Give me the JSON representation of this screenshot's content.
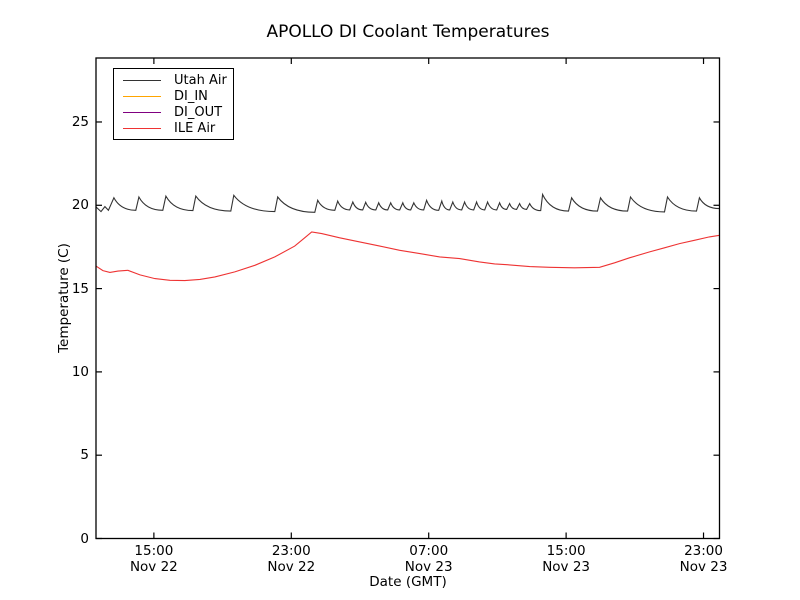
{
  "figure": {
    "background": "#ffffff",
    "axis_color": "#000000"
  },
  "chart_data": {
    "type": "line",
    "title": "APOLLO DI Coolant Temperatures",
    "xlabel": "Date (GMT)",
    "ylabel": "Temperature (C)",
    "x_unit": "hours since Nov 22 00:00 GMT",
    "xlim": [
      11.63,
      47.93
    ],
    "ylim": [
      0,
      28.84
    ],
    "grid": false,
    "legend_position": "upper left",
    "yticks": [
      0,
      5,
      10,
      15,
      20,
      25
    ],
    "xticks": [
      {
        "value": 15,
        "time": "15:00",
        "date": "Nov 22"
      },
      {
        "value": 23,
        "time": "23:00",
        "date": "Nov 22"
      },
      {
        "value": 31,
        "time": "07:00",
        "date": "Nov 23"
      },
      {
        "value": 39,
        "time": "15:00",
        "date": "Nov 23"
      },
      {
        "value": 47,
        "time": "23:00",
        "date": "Nov 23"
      }
    ],
    "series": [
      {
        "name": "Utah Air",
        "color": "#333333",
        "sawtooth": true,
        "points": [
          [
            11.63,
            19.9
          ],
          [
            11.92,
            19.62
          ],
          [
            12.15,
            19.92
          ],
          [
            12.35,
            19.7
          ],
          [
            12.67,
            20.45
          ],
          [
            13.95,
            19.7
          ],
          [
            14.13,
            20.5
          ],
          [
            15.52,
            19.7
          ],
          [
            15.7,
            20.55
          ],
          [
            17.27,
            19.68
          ],
          [
            17.44,
            20.55
          ],
          [
            19.48,
            19.65
          ],
          [
            19.65,
            20.6
          ],
          [
            22.04,
            19.62
          ],
          [
            22.21,
            20.5
          ],
          [
            24.37,
            19.58
          ],
          [
            24.54,
            20.3
          ],
          [
            25.53,
            19.7
          ],
          [
            25.7,
            20.25
          ],
          [
            26.4,
            19.72
          ],
          [
            26.58,
            20.2
          ],
          [
            27.16,
            19.72
          ],
          [
            27.33,
            20.18
          ],
          [
            27.92,
            19.72
          ],
          [
            28.09,
            20.15
          ],
          [
            28.61,
            19.72
          ],
          [
            28.79,
            20.15
          ],
          [
            29.31,
            19.72
          ],
          [
            29.49,
            20.15
          ],
          [
            29.95,
            19.72
          ],
          [
            30.13,
            20.15
          ],
          [
            30.71,
            19.72
          ],
          [
            30.88,
            20.3
          ],
          [
            31.58,
            19.7
          ],
          [
            31.76,
            20.25
          ],
          [
            32.22,
            19.72
          ],
          [
            32.4,
            20.2
          ],
          [
            32.92,
            19.72
          ],
          [
            33.09,
            20.2
          ],
          [
            33.62,
            19.72
          ],
          [
            33.79,
            20.2
          ],
          [
            34.26,
            19.72
          ],
          [
            34.43,
            20.2
          ],
          [
            34.96,
            19.72
          ],
          [
            35.13,
            20.15
          ],
          [
            35.54,
            19.75
          ],
          [
            35.71,
            20.1
          ],
          [
            36.12,
            19.75
          ],
          [
            36.29,
            20.1
          ],
          [
            36.7,
            19.75
          ],
          [
            36.88,
            20.1
          ],
          [
            37.52,
            19.68
          ],
          [
            37.63,
            20.65
          ],
          [
            39.14,
            19.65
          ],
          [
            39.32,
            20.45
          ],
          [
            40.83,
            19.65
          ],
          [
            41.0,
            20.45
          ],
          [
            42.58,
            19.65
          ],
          [
            42.75,
            20.5
          ],
          [
            44.73,
            19.6
          ],
          [
            44.9,
            20.5
          ],
          [
            46.59,
            19.65
          ],
          [
            46.76,
            20.45
          ],
          [
            47.93,
            19.8
          ]
        ]
      },
      {
        "name": "DI_IN",
        "color": "#ffa500",
        "sawtooth": false,
        "points": [
          [
            11.63,
            0
          ],
          [
            47.93,
            0
          ]
        ]
      },
      {
        "name": "DI_OUT",
        "color": "#800080",
        "opacity": 0.7,
        "sawtooth": false,
        "points": [
          [
            11.63,
            0
          ],
          [
            47.93,
            0
          ]
        ]
      },
      {
        "name": "ILE Air",
        "color": "#ee3333",
        "sawtooth": false,
        "points": [
          [
            11.63,
            16.35
          ],
          [
            12.03,
            16.08
          ],
          [
            12.44,
            15.97
          ],
          [
            12.91,
            16.05
          ],
          [
            13.49,
            16.1
          ],
          [
            14.19,
            15.82
          ],
          [
            15.06,
            15.6
          ],
          [
            15.93,
            15.5
          ],
          [
            16.8,
            15.48
          ],
          [
            17.68,
            15.55
          ],
          [
            18.55,
            15.7
          ],
          [
            19.71,
            16.0
          ],
          [
            20.88,
            16.4
          ],
          [
            22.04,
            16.9
          ],
          [
            23.2,
            17.55
          ],
          [
            23.78,
            18.05
          ],
          [
            24.19,
            18.4
          ],
          [
            24.77,
            18.3
          ],
          [
            25.82,
            18.05
          ],
          [
            26.98,
            17.8
          ],
          [
            28.15,
            17.55
          ],
          [
            29.31,
            17.3
          ],
          [
            30.48,
            17.1
          ],
          [
            31.64,
            16.9
          ],
          [
            32.8,
            16.8
          ],
          [
            33.96,
            16.6
          ],
          [
            34.84,
            16.48
          ],
          [
            35.71,
            16.42
          ],
          [
            36.88,
            16.32
          ],
          [
            38.04,
            16.28
          ],
          [
            39.49,
            16.25
          ],
          [
            40.95,
            16.28
          ],
          [
            41.82,
            16.55
          ],
          [
            42.69,
            16.85
          ],
          [
            43.86,
            17.2
          ],
          [
            44.73,
            17.45
          ],
          [
            45.6,
            17.7
          ],
          [
            46.47,
            17.9
          ],
          [
            47.34,
            18.1
          ],
          [
            47.93,
            18.2
          ]
        ]
      }
    ]
  }
}
